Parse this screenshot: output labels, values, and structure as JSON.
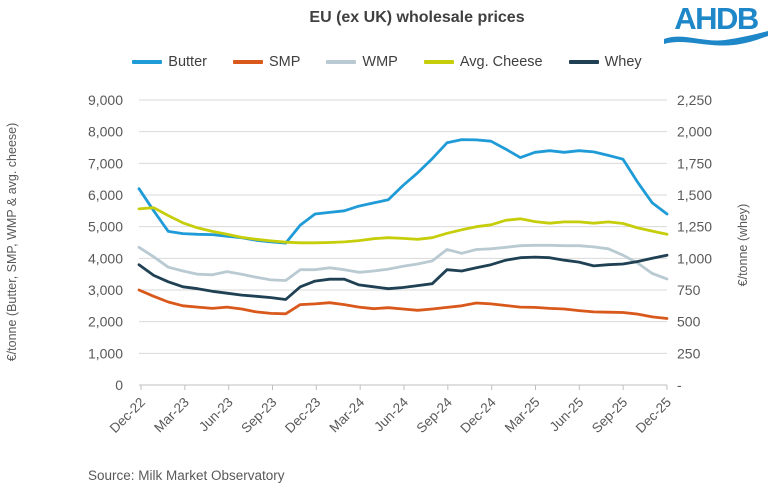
{
  "chart": {
    "title": "EU (ex UK) wholesale prices",
    "source": "Source: Milk Market Observatory",
    "left_axis_title": "€/tonne (Butter, SMP, WMP & avg. cheese)",
    "right_axis_title": "€/tonne (whey)"
  },
  "logo": {
    "text": "AHDB",
    "color": "#1e87c8"
  },
  "colors": {
    "title_text": "#404040",
    "axis_text": "#595959",
    "gridline": "#d9d9d9",
    "axis_line": "#bfbfbf",
    "background": "#ffffff"
  },
  "chart_data": {
    "type": "line",
    "title": "EU (ex UK) wholesale prices",
    "x_frequency": "monthly",
    "x_range": "Dec-22 to Dec-25, 37 monthly points",
    "x_tick_labels": [
      "Dec-22",
      "Mar-23",
      "Jun-23",
      "Sep-23",
      "Dec-23",
      "Mar-24",
      "Jun-24",
      "Sep-24",
      "Dec-24",
      "Mar-25",
      "Jun-25",
      "Sep-25",
      "Dec-25"
    ],
    "grid": "horizontal",
    "legend_position": "top",
    "left_axis": {
      "label": "€/tonne (Butter, SMP, WMP & avg. cheese)",
      "min": 0,
      "max": 9000,
      "tick_step": 1000,
      "tick_labels": [
        "0",
        "1,000",
        "2,000",
        "3,000",
        "4,000",
        "5,000",
        "6,000",
        "7,000",
        "8,000",
        "9,000"
      ]
    },
    "right_axis": {
      "label": "€/tonne (whey)",
      "min": 0,
      "max": 2250,
      "tick_step": 250,
      "tick_labels": [
        "-",
        "250",
        "500",
        "750",
        "1,000",
        "1,250",
        "1,500",
        "1,750",
        "2,000",
        "2,250"
      ]
    },
    "series": [
      {
        "name": "Butter",
        "color": "#1f9bd7",
        "axis": "left",
        "values": [
          6200,
          5500,
          4850,
          4780,
          4760,
          4750,
          4700,
          4650,
          4570,
          4520,
          4480,
          5050,
          5400,
          5450,
          5500,
          5650,
          5750,
          5850,
          6300,
          6700,
          7150,
          7650,
          7750,
          7740,
          7700,
          7450,
          7180,
          7350,
          7400,
          7350,
          7400,
          7360,
          7250,
          7130,
          6400,
          5750,
          5400
        ]
      },
      {
        "name": "SMP",
        "color": "#d9581b",
        "axis": "left",
        "values": [
          3000,
          2800,
          2620,
          2500,
          2460,
          2420,
          2460,
          2400,
          2310,
          2260,
          2250,
          2540,
          2560,
          2600,
          2540,
          2460,
          2410,
          2440,
          2400,
          2360,
          2400,
          2450,
          2500,
          2590,
          2560,
          2510,
          2460,
          2450,
          2420,
          2400,
          2350,
          2310,
          2300,
          2290,
          2240,
          2150,
          2100
        ]
      },
      {
        "name": "WMP",
        "color": "#b9cad2",
        "axis": "left",
        "values": [
          4350,
          4050,
          3720,
          3600,
          3500,
          3480,
          3580,
          3500,
          3400,
          3320,
          3300,
          3640,
          3640,
          3700,
          3640,
          3560,
          3600,
          3660,
          3750,
          3820,
          3920,
          4280,
          4160,
          4280,
          4300,
          4350,
          4400,
          4410,
          4410,
          4400,
          4400,
          4360,
          4300,
          4100,
          3850,
          3520,
          3350
        ]
      },
      {
        "name": "Avg. Cheese",
        "color": "#c6ce0c",
        "axis": "left",
        "values": [
          5560,
          5600,
          5350,
          5120,
          4960,
          4850,
          4760,
          4660,
          4600,
          4550,
          4510,
          4490,
          4490,
          4500,
          4520,
          4560,
          4620,
          4650,
          4630,
          4600,
          4650,
          4790,
          4900,
          5000,
          5060,
          5200,
          5250,
          5160,
          5110,
          5150,
          5150,
          5110,
          5150,
          5100,
          4960,
          4860,
          4760
        ]
      },
      {
        "name": "Whey",
        "color": "#1f4153",
        "axis": "right",
        "values": [
          950,
          865,
          815,
          775,
          760,
          740,
          725,
          710,
          700,
          690,
          675,
          775,
          820,
          835,
          835,
          790,
          775,
          760,
          770,
          785,
          800,
          910,
          900,
          925,
          950,
          985,
          1005,
          1010,
          1005,
          985,
          970,
          940,
          950,
          955,
          975,
          1000,
          1025
        ]
      }
    ]
  }
}
